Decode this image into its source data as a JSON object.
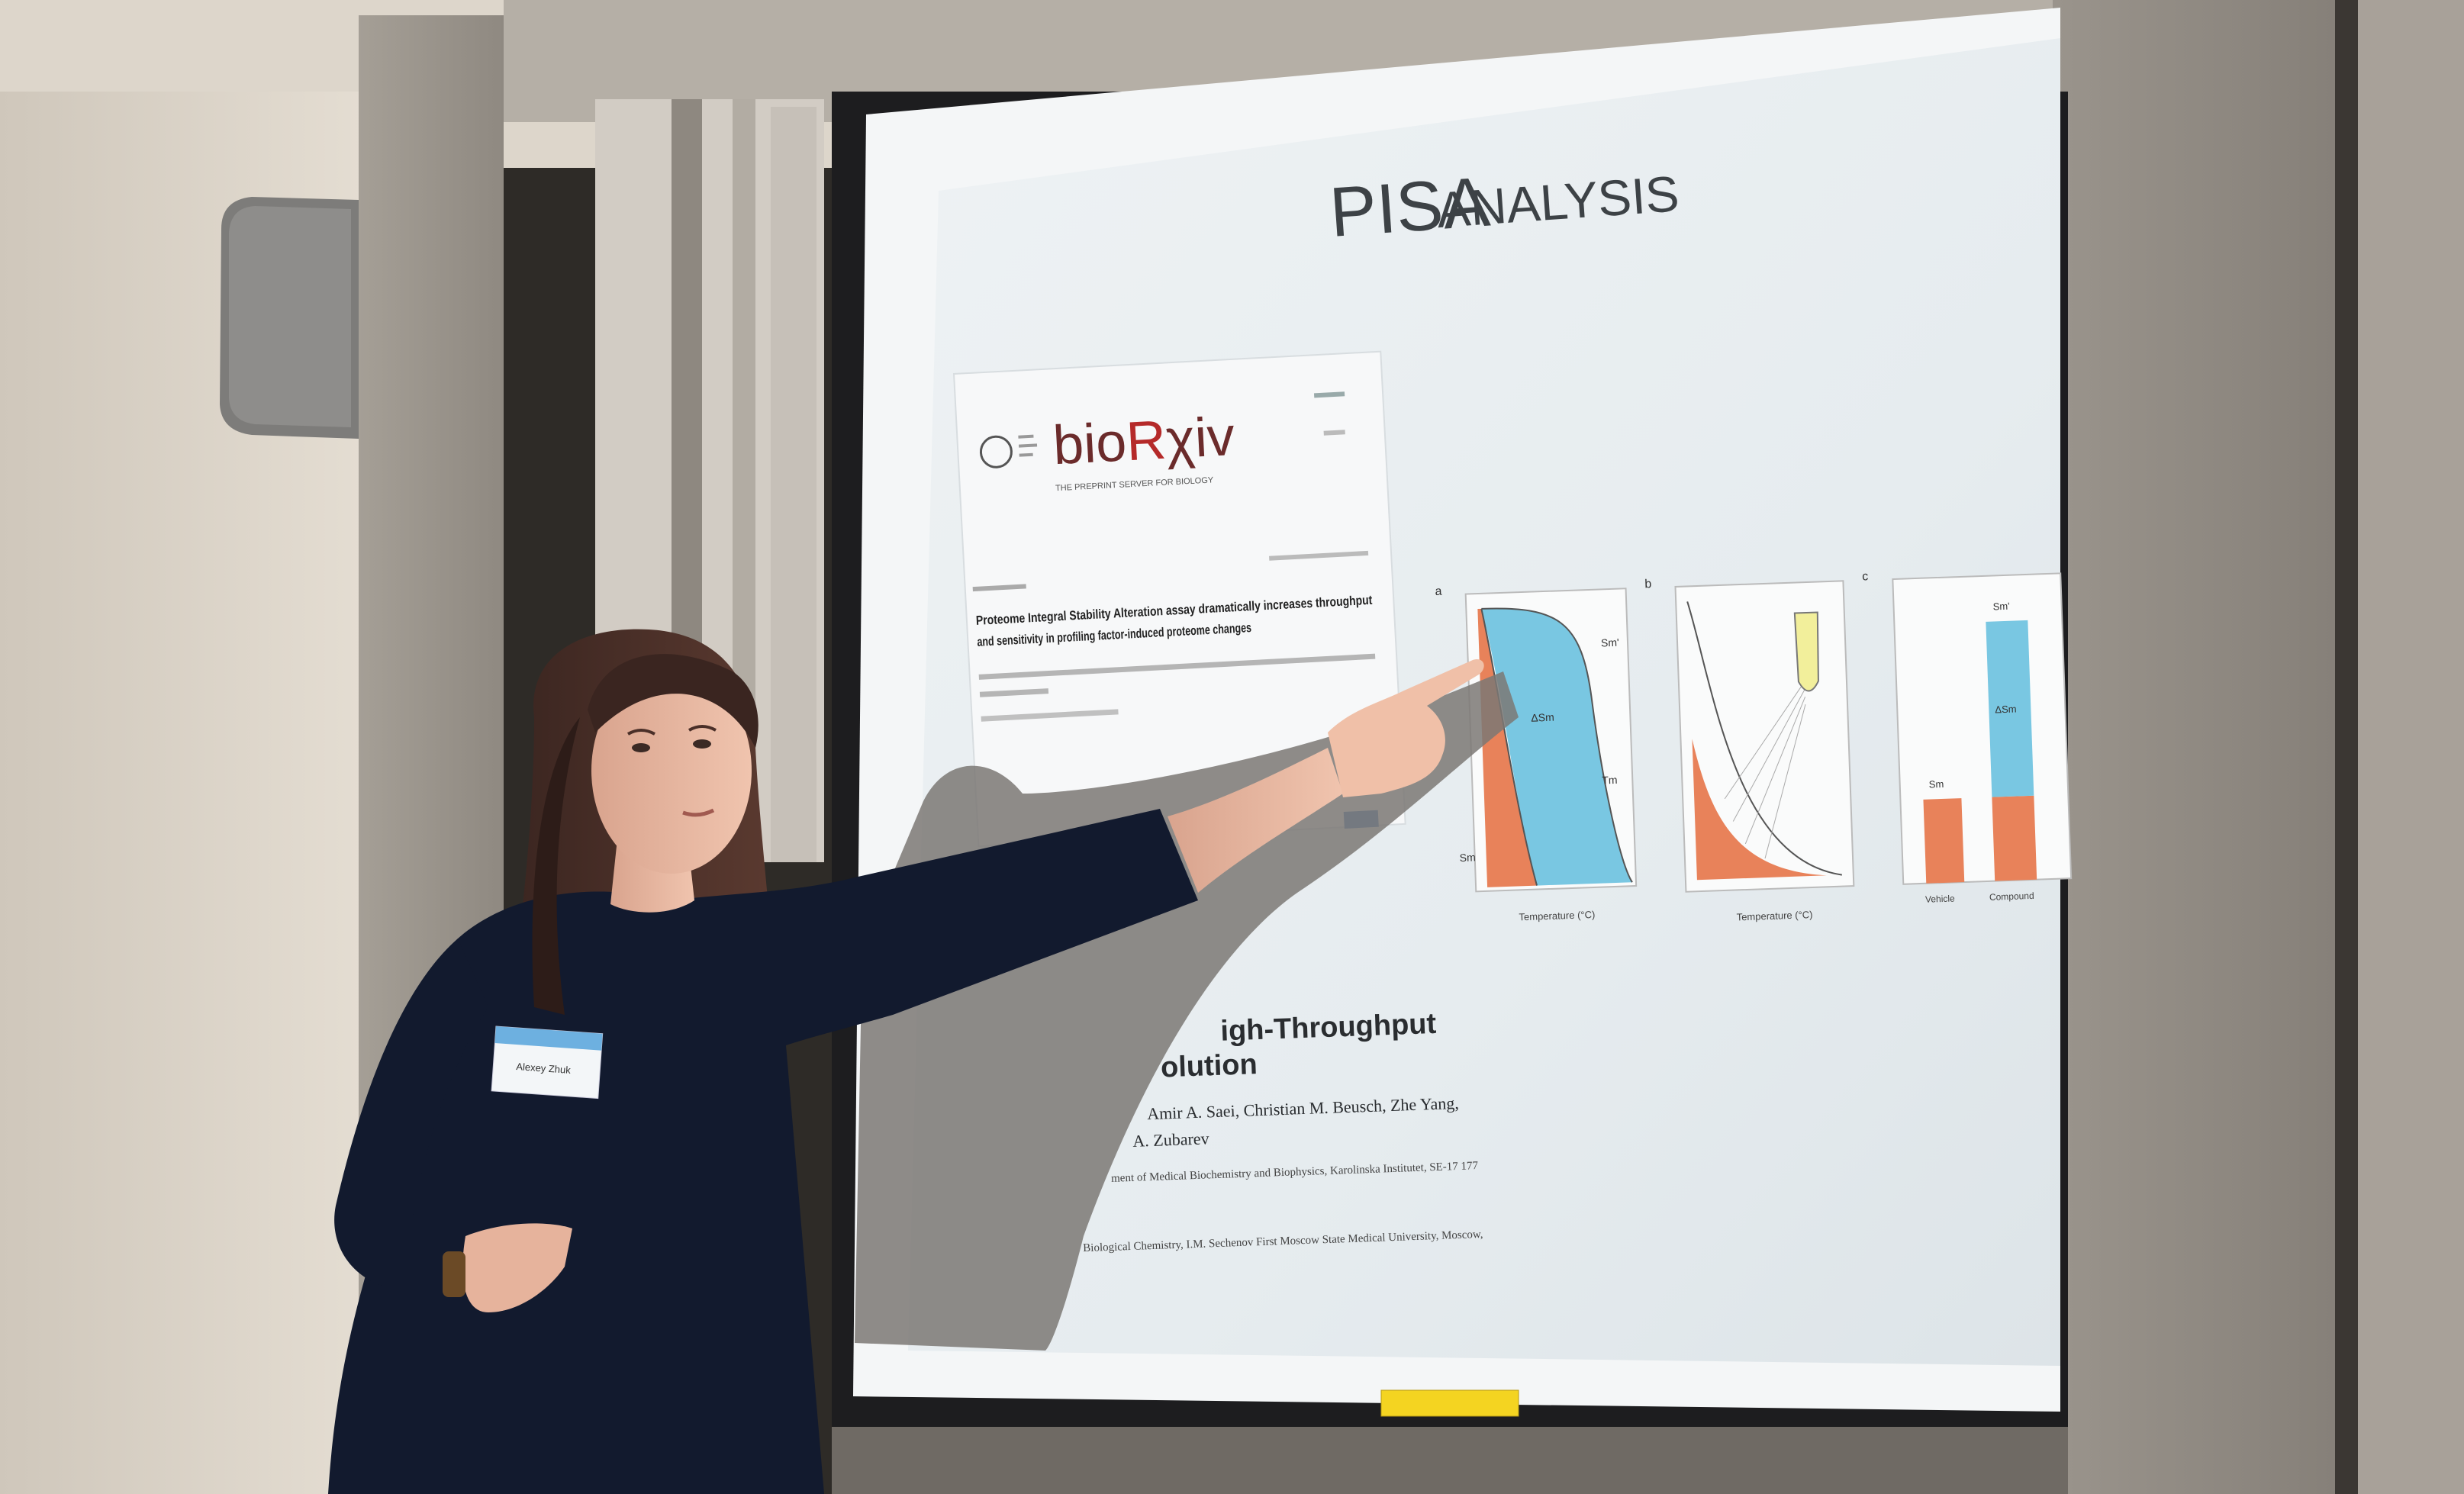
{
  "slide": {
    "title_main": "PISA",
    "title_small": "ANALYSIS"
  },
  "biorxiv": {
    "logo_bio": "bio",
    "logo_r": "R",
    "logo_xiv": "χiv",
    "tagline": "THE PREPRINT SERVER FOR BIOLOGY",
    "article_title_line1": "Proteome Integral Stability Alteration assay dramatically increases throughput",
    "article_title_line2": "and sensitivity in profiling factor-induced proteome changes"
  },
  "paper_behind": {
    "title_fragment_1": "igh-Throughput",
    "title_fragment_2": "olution",
    "authors_fragment": "Amir A. Saei,  Christian M. Beusch,  Zhe Yang,",
    "authors_fragment_2": "A. Zubarev",
    "affil_1": "ment of Medical Biochemistry and Biophysics, Karolinska Institutet, SE-17 177",
    "affil_2": "Biological Chemistry, I.M. Sechenov First Moscow State Medical University, Moscow,"
  },
  "figure": {
    "panel_a": "a",
    "panel_b": "b",
    "panel_c": "c",
    "label_sm": "Sm",
    "label_sm_prime": "Sm'",
    "label_delta_s": "ΔSm",
    "label_tm": "Tm",
    "xlabel": "Temperature (°C)",
    "c_categories": [
      "Vehicle",
      "Compound"
    ]
  },
  "badge": {
    "name": "Alexey Zhuk"
  },
  "colors": {
    "slide_bg": "#e9eef1",
    "fill_orange": "#e8825a",
    "fill_blue": "#79c7e2",
    "shirt": "#121a2e",
    "wall": "#d9d2c7"
  },
  "icons": {
    "speaker": "wall-speaker-icon",
    "pointing_hand": "pointing-hand-icon"
  }
}
